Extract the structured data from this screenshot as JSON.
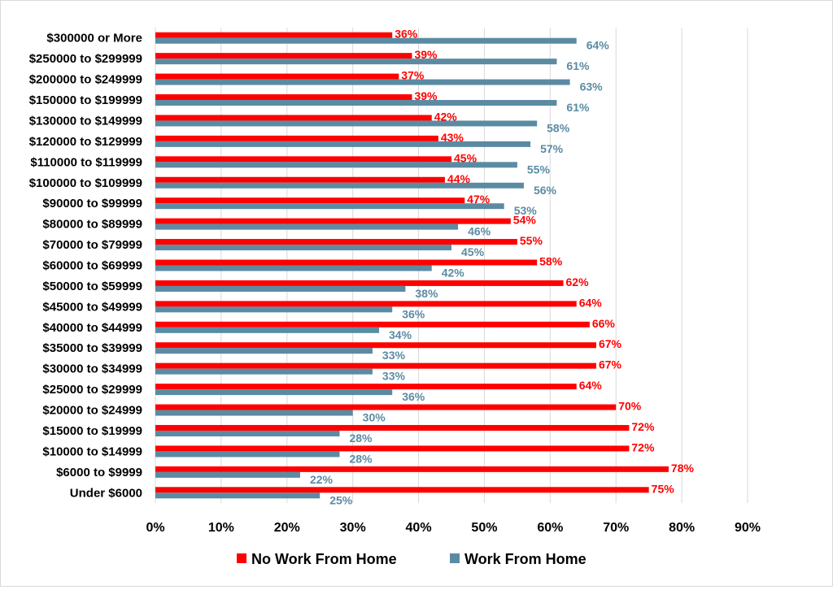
{
  "colors": {
    "no_wfh": "#ff0000",
    "wfh": "#5b8ba3",
    "grid": "#d9d9d9"
  },
  "legend": {
    "no_wfh_label": "No Work From Home",
    "wfh_label": "Work From Home"
  },
  "chart_data": {
    "type": "bar",
    "orientation": "horizontal",
    "title": "",
    "xlabel": "",
    "ylabel": "",
    "xlim": [
      0,
      90
    ],
    "x_ticks": [
      "0%",
      "10%",
      "20%",
      "30%",
      "40%",
      "50%",
      "60%",
      "70%",
      "80%",
      "90%"
    ],
    "grid": true,
    "legend_position": "bottom",
    "categories": [
      "$300000 or More",
      "$250000 to $299999",
      "$200000 to $249999",
      "$150000 to $199999",
      "$130000 to $149999",
      "$120000 to $129999",
      "$110000 to $119999",
      "$100000 to $109999",
      "$90000 to $99999",
      "$80000 to $89999",
      "$70000 to $79999",
      "$60000 to $69999",
      "$50000 to $59999",
      "$45000 to $49999",
      "$40000 to $44999",
      "$35000 to $39999",
      "$30000 to $34999",
      "$25000 to $29999",
      "$20000 to $24999",
      "$15000 to $19999",
      "$10000 to $14999",
      "$6000 to $9999",
      "Under $6000"
    ],
    "series": [
      {
        "name": "No Work From Home",
        "values": [
          36,
          39,
          37,
          39,
          42,
          43,
          45,
          44,
          47,
          54,
          55,
          58,
          62,
          64,
          66,
          67,
          67,
          64,
          70,
          72,
          72,
          78,
          75
        ],
        "labels": [
          "36%",
          "39%",
          "37%",
          "39%",
          "42%",
          "43%",
          "45%",
          "44%",
          "47%",
          "54%",
          "55%",
          "58%",
          "62%",
          "64%",
          "66%",
          "67%",
          "67%",
          "64%",
          "70%",
          "72%",
          "72%",
          "78%",
          "75%"
        ]
      },
      {
        "name": "Work From Home",
        "values": [
          64,
          61,
          63,
          61,
          58,
          57,
          55,
          56,
          53,
          46,
          45,
          42,
          38,
          36,
          34,
          33,
          33,
          36,
          30,
          28,
          28,
          22,
          25
        ],
        "labels": [
          "64%",
          "61%",
          "63%",
          "61%",
          "58%",
          "57%",
          "55%",
          "56%",
          "53%",
          "46%",
          "45%",
          "42%",
          "38%",
          "36%",
          "34%",
          "33%",
          "33%",
          "36%",
          "30%",
          "28%",
          "28%",
          "22%",
          "25%"
        ]
      }
    ]
  }
}
